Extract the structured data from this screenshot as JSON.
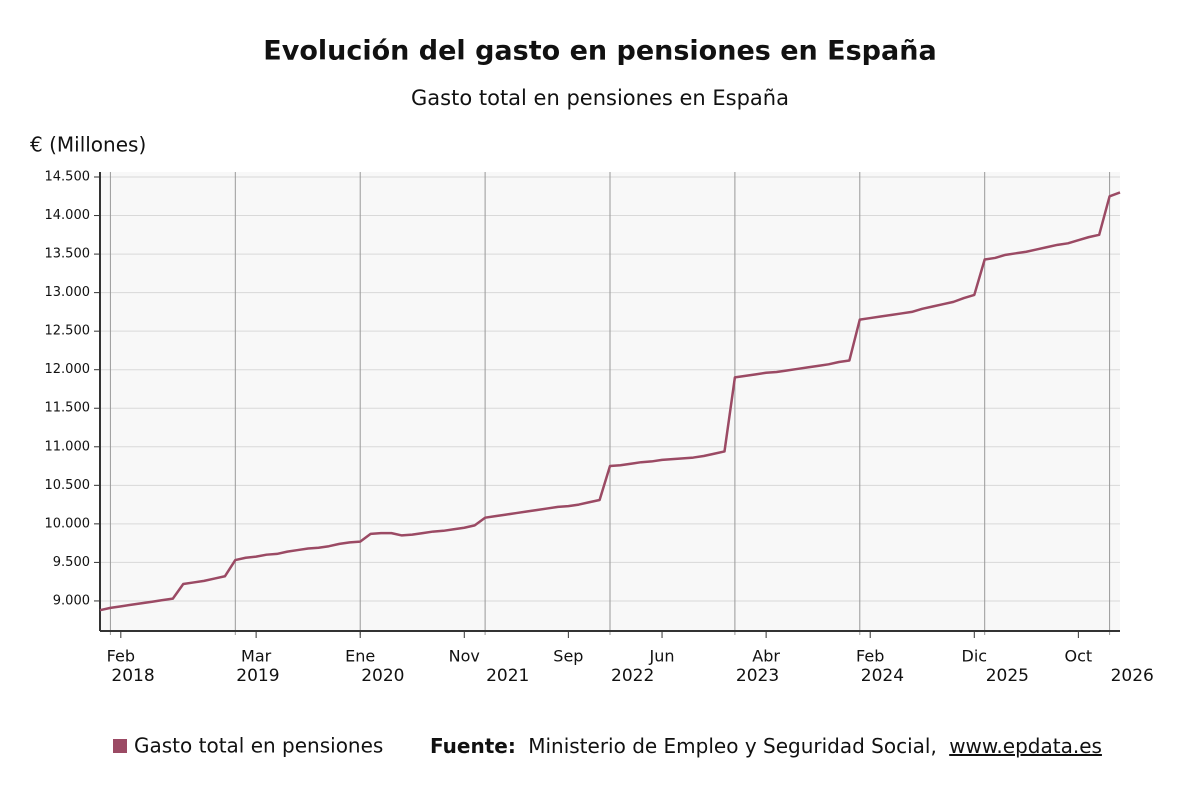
{
  "chart_data": {
    "type": "line",
    "title": "Evolución del gasto en pensiones en España",
    "subtitle": "Gasto total en pensiones en España",
    "y_label": "€ (Millones)",
    "x": [
      "2017-12",
      "2018-01",
      "2018-02",
      "2018-03",
      "2018-04",
      "2018-05",
      "2018-06",
      "2018-07",
      "2018-08",
      "2018-09",
      "2018-10",
      "2018-11",
      "2018-12",
      "2019-01",
      "2019-02",
      "2019-03",
      "2019-04",
      "2019-05",
      "2019-06",
      "2019-07",
      "2019-08",
      "2019-09",
      "2019-10",
      "2019-11",
      "2019-12",
      "2020-01",
      "2020-02",
      "2020-03",
      "2020-04",
      "2020-05",
      "2020-06",
      "2020-07",
      "2020-08",
      "2020-09",
      "2020-10",
      "2020-11",
      "2020-12",
      "2021-01",
      "2021-02",
      "2021-03",
      "2021-04",
      "2021-05",
      "2021-06",
      "2021-07",
      "2021-08",
      "2021-09",
      "2021-10",
      "2021-11",
      "2021-12",
      "2022-01",
      "2022-02",
      "2022-03",
      "2022-04",
      "2022-05",
      "2022-06",
      "2022-07",
      "2022-08",
      "2022-09",
      "2022-10",
      "2022-11",
      "2022-12",
      "2023-01",
      "2023-02",
      "2023-03",
      "2023-04",
      "2023-05",
      "2023-06",
      "2023-07",
      "2023-08",
      "2023-09",
      "2023-10",
      "2023-11",
      "2023-12",
      "2024-01",
      "2024-02",
      "2024-03",
      "2024-04",
      "2024-05",
      "2024-06",
      "2024-07",
      "2024-08",
      "2024-09",
      "2024-10",
      "2024-11",
      "2024-12",
      "2025-01",
      "2025-02",
      "2025-03",
      "2025-04",
      "2025-05",
      "2025-06",
      "2025-07",
      "2025-08",
      "2025-09",
      "2025-10",
      "2025-11",
      "2025-12",
      "2026-01",
      "2026-02"
    ],
    "series": [
      {
        "name": "Gasto total en pensiones",
        "color": "#9b4a64",
        "values": [
          8880,
          8910,
          8930,
          8950,
          8970,
          8990,
          9010,
          9030,
          9220,
          9240,
          9260,
          9290,
          9320,
          9530,
          9560,
          9575,
          9600,
          9610,
          9640,
          9660,
          9680,
          9690,
          9710,
          9740,
          9760,
          9770,
          9870,
          9880,
          9880,
          9850,
          9860,
          9880,
          9900,
          9910,
          9930,
          9950,
          9980,
          10080,
          10100,
          10120,
          10140,
          10160,
          10180,
          10200,
          10220,
          10230,
          10250,
          10280,
          10310,
          10750,
          10760,
          10780,
          10800,
          10810,
          10830,
          10840,
          10850,
          10860,
          10880,
          10910,
          10940,
          11900,
          11920,
          11940,
          11960,
          11970,
          11990,
          12010,
          12030,
          12050,
          12070,
          12100,
          12120,
          12650,
          12670,
          12690,
          12710,
          12730,
          12750,
          12790,
          12820,
          12850,
          12880,
          12930,
          12970,
          13430,
          13450,
          13490,
          13510,
          13530,
          13560,
          13590,
          13620,
          13640,
          13680,
          13720,
          13750,
          14250,
          14300
        ]
      }
    ],
    "xlim": [
      "2017-12",
      "2026-02"
    ],
    "xticks": [
      {
        "value": "2018-02",
        "label": "Feb"
      },
      {
        "value": "2019-03",
        "label": "Mar"
      },
      {
        "value": "2020-01",
        "label": "Ene"
      },
      {
        "value": "2020-11",
        "label": "Nov"
      },
      {
        "value": "2021-09",
        "label": "Sep"
      },
      {
        "value": "2022-06",
        "label": "Jun"
      },
      {
        "value": "2023-04",
        "label": "Abr"
      },
      {
        "value": "2024-02",
        "label": "Feb"
      },
      {
        "value": "2024-12",
        "label": "Dic"
      },
      {
        "value": "2025-10",
        "label": "Oct"
      }
    ],
    "year_ticks": [
      {
        "value": "2018-01",
        "label": "2018"
      },
      {
        "value": "2019-01",
        "label": "2019"
      },
      {
        "value": "2020-01",
        "label": "2020"
      },
      {
        "value": "2021-01",
        "label": "2021"
      },
      {
        "value": "2022-01",
        "label": "2022"
      },
      {
        "value": "2023-01",
        "label": "2023"
      },
      {
        "value": "2024-01",
        "label": "2024"
      },
      {
        "value": "2025-01",
        "label": "2025"
      },
      {
        "value": "2026-01",
        "label": "2026"
      }
    ],
    "ylim": [
      8610,
      14565
    ],
    "yticks": [
      {
        "value": 9000,
        "label": "9.000"
      },
      {
        "value": 9500,
        "label": "9.500"
      },
      {
        "value": 10000,
        "label": "10.000"
      },
      {
        "value": 10500,
        "label": "10.500"
      },
      {
        "value": 11000,
        "label": "11.000"
      },
      {
        "value": 11500,
        "label": "11.500"
      },
      {
        "value": 12000,
        "label": "12.000"
      },
      {
        "value": 12500,
        "label": "12.500"
      },
      {
        "value": 13000,
        "label": "13.000"
      },
      {
        "value": 13500,
        "label": "13.500"
      },
      {
        "value": 14000,
        "label": "14.000"
      },
      {
        "value": 14500,
        "label": "14.500"
      }
    ],
    "grid": true,
    "source": {
      "label": "Fuente:",
      "text": "Ministerio de Empleo y Seguridad Social,",
      "link": "www.epdata.es"
    }
  }
}
